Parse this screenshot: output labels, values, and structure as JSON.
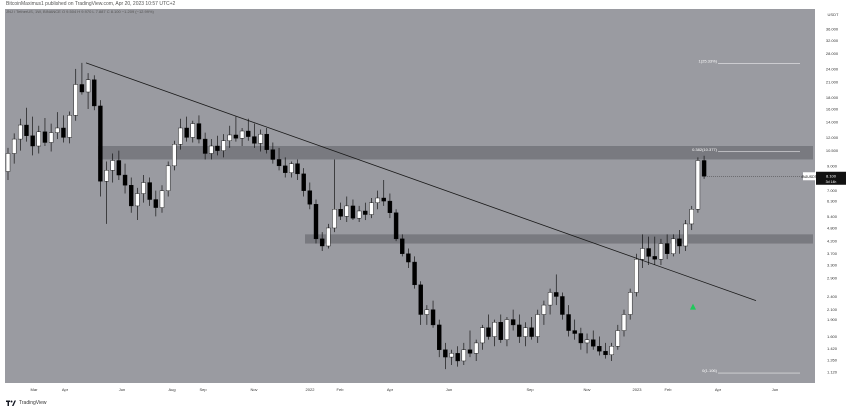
{
  "header": {
    "publish_line": "BitcoinMaximus1 published on TradingView.com, Apr 20, 2023 10:57 UTC+2",
    "symbol_line": "JNJ / TetherUS, 1W, BINANCE  O 9.504  H 9.970  L 7.887  C 8.100  −1.209 (−12.99%)"
  },
  "footer": {
    "brand": "TradingView"
  },
  "colors": {
    "plot_bg": "#9a9ba1",
    "up": "#ffffff",
    "down": "#000000",
    "zone": "#6e6f75",
    "arrow": "#1ec95a",
    "price_tag": "#111111"
  },
  "chart_data": {
    "type": "candlestick",
    "y_scale": "log",
    "ylim": [
      1.0,
      44.0
    ],
    "currency_label": "USDT",
    "y_ticks": [
      "36.000",
      "32.000",
      "28.000",
      "24.000",
      "21.000",
      "18.000",
      "16.000",
      "14.000",
      "12.000",
      "10.500",
      "9.000",
      "8.000",
      "7.000",
      "6.300",
      "5.400",
      "4.800",
      "4.200",
      "3.700",
      "3.300",
      "2.900",
      "2.400",
      "2.100",
      "1.900",
      "1.600",
      "1.420",
      "1.260",
      "1.120",
      "1.000"
    ],
    "x_ticks": [
      "Mar",
      "Apr",
      "Jun",
      "Aug",
      "Sep",
      "Nov",
      "2022",
      "Feb",
      "Apr",
      "Jun",
      "Sep",
      "Nov",
      "2023",
      "Feb",
      "Apr",
      "Jun"
    ],
    "price_tag": {
      "label": "JNJUSDT",
      "value": "8.100",
      "countdown": "3d 14h"
    },
    "annotations": [
      {
        "label": "1(25.33%)",
        "price": 25.33
      },
      {
        "label": "0.382(10.377)",
        "price": 10.377
      },
      {
        "label": "0(1.106)",
        "price": 1.106
      }
    ],
    "zones": [
      {
        "from": 9.6,
        "to": 11.0
      },
      {
        "from": 4.1,
        "to": 4.5
      }
    ],
    "trendline": {
      "from": 25.5,
      "to": 2.3
    },
    "arrow_price": 2.3,
    "candles": [
      {
        "o": 8.5,
        "h": 10.8,
        "l": 7.8,
        "c": 10.2
      },
      {
        "o": 10.2,
        "h": 12.5,
        "l": 9.2,
        "c": 11.8
      },
      {
        "o": 11.8,
        "h": 14.5,
        "l": 10.5,
        "c": 13.6
      },
      {
        "o": 13.6,
        "h": 16.2,
        "l": 11.5,
        "c": 12.2
      },
      {
        "o": 12.2,
        "h": 14.8,
        "l": 10.0,
        "c": 11.0
      },
      {
        "o": 11.0,
        "h": 13.5,
        "l": 10.2,
        "c": 12.7
      },
      {
        "o": 12.7,
        "h": 14.6,
        "l": 11.0,
        "c": 11.4
      },
      {
        "o": 11.4,
        "h": 13.8,
        "l": 10.4,
        "c": 12.6
      },
      {
        "o": 12.6,
        "h": 15.5,
        "l": 11.8,
        "c": 13.2
      },
      {
        "o": 13.2,
        "h": 15.0,
        "l": 11.4,
        "c": 12.0
      },
      {
        "o": 12.0,
        "h": 15.6,
        "l": 11.3,
        "c": 15.0
      },
      {
        "o": 15.0,
        "h": 24.0,
        "l": 14.2,
        "c": 20.5
      },
      {
        "o": 20.5,
        "h": 25.5,
        "l": 18.5,
        "c": 19.0
      },
      {
        "o": 19.0,
        "h": 23.0,
        "l": 16.0,
        "c": 21.5
      },
      {
        "o": 21.5,
        "h": 22.5,
        "l": 15.8,
        "c": 16.5
      },
      {
        "o": 16.5,
        "h": 17.5,
        "l": 6.6,
        "c": 7.7
      },
      {
        "o": 7.7,
        "h": 9.4,
        "l": 5.0,
        "c": 8.6
      },
      {
        "o": 8.6,
        "h": 10.2,
        "l": 7.6,
        "c": 9.5
      },
      {
        "o": 9.5,
        "h": 10.5,
        "l": 7.8,
        "c": 8.2
      },
      {
        "o": 8.2,
        "h": 9.2,
        "l": 6.8,
        "c": 7.4
      },
      {
        "o": 7.4,
        "h": 8.0,
        "l": 5.6,
        "c": 6.0
      },
      {
        "o": 6.0,
        "h": 7.2,
        "l": 5.2,
        "c": 6.8
      },
      {
        "o": 6.8,
        "h": 8.2,
        "l": 6.2,
        "c": 7.6
      },
      {
        "o": 7.6,
        "h": 8.0,
        "l": 6.0,
        "c": 6.4
      },
      {
        "o": 6.4,
        "h": 7.0,
        "l": 5.4,
        "c": 5.9
      },
      {
        "o": 5.9,
        "h": 7.4,
        "l": 5.6,
        "c": 7.0
      },
      {
        "o": 7.0,
        "h": 9.4,
        "l": 6.6,
        "c": 9.0
      },
      {
        "o": 9.0,
        "h": 11.6,
        "l": 8.6,
        "c": 11.2
      },
      {
        "o": 11.2,
        "h": 14.5,
        "l": 10.6,
        "c": 13.2
      },
      {
        "o": 13.2,
        "h": 14.8,
        "l": 11.5,
        "c": 12.0
      },
      {
        "o": 12.0,
        "h": 14.2,
        "l": 11.4,
        "c": 13.8
      },
      {
        "o": 13.8,
        "h": 15.0,
        "l": 11.3,
        "c": 11.8
      },
      {
        "o": 11.8,
        "h": 12.6,
        "l": 9.6,
        "c": 10.2
      },
      {
        "o": 10.2,
        "h": 11.8,
        "l": 9.6,
        "c": 11.0
      },
      {
        "o": 11.0,
        "h": 12.2,
        "l": 10.0,
        "c": 10.5
      },
      {
        "o": 10.5,
        "h": 12.4,
        "l": 9.8,
        "c": 11.6
      },
      {
        "o": 11.6,
        "h": 13.5,
        "l": 10.8,
        "c": 12.3
      },
      {
        "o": 12.3,
        "h": 14.8,
        "l": 11.5,
        "c": 11.9
      },
      {
        "o": 11.9,
        "h": 13.2,
        "l": 11.0,
        "c": 12.8
      },
      {
        "o": 12.8,
        "h": 14.5,
        "l": 11.6,
        "c": 12.1
      },
      {
        "o": 12.1,
        "h": 13.8,
        "l": 10.8,
        "c": 11.3
      },
      {
        "o": 11.3,
        "h": 13.0,
        "l": 10.4,
        "c": 12.4
      },
      {
        "o": 12.4,
        "h": 13.2,
        "l": 10.2,
        "c": 10.6
      },
      {
        "o": 10.6,
        "h": 11.4,
        "l": 9.2,
        "c": 9.6
      },
      {
        "o": 9.6,
        "h": 10.8,
        "l": 8.6,
        "c": 9.0
      },
      {
        "o": 9.0,
        "h": 9.8,
        "l": 8.0,
        "c": 8.4
      },
      {
        "o": 8.4,
        "h": 9.4,
        "l": 8.0,
        "c": 9.2
      },
      {
        "o": 9.2,
        "h": 9.6,
        "l": 7.8,
        "c": 8.3
      },
      {
        "o": 8.3,
        "h": 8.8,
        "l": 6.6,
        "c": 7.0
      },
      {
        "o": 7.0,
        "h": 7.6,
        "l": 5.8,
        "c": 6.1
      },
      {
        "o": 6.1,
        "h": 6.4,
        "l": 4.1,
        "c": 4.3
      },
      {
        "o": 4.3,
        "h": 4.6,
        "l": 3.8,
        "c": 4.0
      },
      {
        "o": 4.0,
        "h": 5.0,
        "l": 3.9,
        "c": 4.8
      },
      {
        "o": 4.8,
        "h": 9.6,
        "l": 4.6,
        "c": 5.8
      },
      {
        "o": 5.8,
        "h": 6.2,
        "l": 5.2,
        "c": 5.4
      },
      {
        "o": 5.4,
        "h": 6.6,
        "l": 5.1,
        "c": 6.0
      },
      {
        "o": 6.0,
        "h": 6.4,
        "l": 5.2,
        "c": 5.3
      },
      {
        "o": 5.3,
        "h": 6.0,
        "l": 5.1,
        "c": 5.7
      },
      {
        "o": 5.7,
        "h": 6.2,
        "l": 5.2,
        "c": 5.5
      },
      {
        "o": 5.5,
        "h": 6.5,
        "l": 5.3,
        "c": 6.2
      },
      {
        "o": 6.2,
        "h": 7.0,
        "l": 5.8,
        "c": 6.5
      },
      {
        "o": 6.5,
        "h": 7.8,
        "l": 6.0,
        "c": 6.3
      },
      {
        "o": 6.3,
        "h": 6.8,
        "l": 5.3,
        "c": 5.6
      },
      {
        "o": 5.6,
        "h": 5.8,
        "l": 4.2,
        "c": 4.3
      },
      {
        "o": 4.3,
        "h": 4.5,
        "l": 3.6,
        "c": 3.7
      },
      {
        "o": 3.7,
        "h": 3.9,
        "l": 3.2,
        "c": 3.4
      },
      {
        "o": 3.4,
        "h": 3.6,
        "l": 2.6,
        "c": 2.7
      },
      {
        "o": 2.7,
        "h": 2.8,
        "l": 1.8,
        "c": 2.0
      },
      {
        "o": 2.0,
        "h": 2.2,
        "l": 1.8,
        "c": 2.1
      },
      {
        "o": 2.1,
        "h": 2.3,
        "l": 1.75,
        "c": 1.8
      },
      {
        "o": 1.8,
        "h": 1.9,
        "l": 1.3,
        "c": 1.4
      },
      {
        "o": 1.4,
        "h": 1.5,
        "l": 1.15,
        "c": 1.3
      },
      {
        "o": 1.3,
        "h": 1.4,
        "l": 1.2,
        "c": 1.35
      },
      {
        "o": 1.35,
        "h": 1.45,
        "l": 1.18,
        "c": 1.25
      },
      {
        "o": 1.25,
        "h": 1.5,
        "l": 1.2,
        "c": 1.4
      },
      {
        "o": 1.4,
        "h": 1.7,
        "l": 1.3,
        "c": 1.35
      },
      {
        "o": 1.35,
        "h": 1.55,
        "l": 1.25,
        "c": 1.5
      },
      {
        "o": 1.5,
        "h": 1.8,
        "l": 1.4,
        "c": 1.75
      },
      {
        "o": 1.75,
        "h": 2.0,
        "l": 1.55,
        "c": 1.6
      },
      {
        "o": 1.6,
        "h": 1.9,
        "l": 1.45,
        "c": 1.85
      },
      {
        "o": 1.85,
        "h": 2.0,
        "l": 1.5,
        "c": 1.55
      },
      {
        "o": 1.55,
        "h": 1.95,
        "l": 1.45,
        "c": 1.9
      },
      {
        "o": 1.9,
        "h": 2.1,
        "l": 1.7,
        "c": 1.8
      },
      {
        "o": 1.8,
        "h": 2.0,
        "l": 1.5,
        "c": 1.6
      },
      {
        "o": 1.6,
        "h": 1.85,
        "l": 1.45,
        "c": 1.75
      },
      {
        "o": 1.75,
        "h": 1.95,
        "l": 1.55,
        "c": 1.6
      },
      {
        "o": 1.6,
        "h": 2.1,
        "l": 1.5,
        "c": 2.0
      },
      {
        "o": 2.0,
        "h": 2.3,
        "l": 1.8,
        "c": 2.2
      },
      {
        "o": 2.2,
        "h": 2.6,
        "l": 2.0,
        "c": 2.5
      },
      {
        "o": 2.5,
        "h": 3.0,
        "l": 2.2,
        "c": 2.4
      },
      {
        "o": 2.4,
        "h": 2.5,
        "l": 1.9,
        "c": 2.0
      },
      {
        "o": 2.0,
        "h": 2.2,
        "l": 1.6,
        "c": 1.7
      },
      {
        "o": 1.7,
        "h": 1.9,
        "l": 1.55,
        "c": 1.65
      },
      {
        "o": 1.65,
        "h": 1.75,
        "l": 1.4,
        "c": 1.5
      },
      {
        "o": 1.5,
        "h": 1.65,
        "l": 1.35,
        "c": 1.55
      },
      {
        "o": 1.55,
        "h": 1.7,
        "l": 1.4,
        "c": 1.45
      },
      {
        "o": 1.45,
        "h": 1.6,
        "l": 1.32,
        "c": 1.38
      },
      {
        "o": 1.38,
        "h": 1.5,
        "l": 1.28,
        "c": 1.33
      },
      {
        "o": 1.33,
        "h": 1.5,
        "l": 1.25,
        "c": 1.45
      },
      {
        "o": 1.45,
        "h": 1.8,
        "l": 1.4,
        "c": 1.7
      },
      {
        "o": 1.7,
        "h": 2.1,
        "l": 1.6,
        "c": 2.0
      },
      {
        "o": 2.0,
        "h": 2.6,
        "l": 1.9,
        "c": 2.5
      },
      {
        "o": 2.5,
        "h": 3.7,
        "l": 2.4,
        "c": 3.5
      },
      {
        "o": 3.5,
        "h": 4.5,
        "l": 3.2,
        "c": 3.9
      },
      {
        "o": 3.9,
        "h": 4.4,
        "l": 3.3,
        "c": 3.6
      },
      {
        "o": 3.6,
        "h": 4.4,
        "l": 3.3,
        "c": 3.5
      },
      {
        "o": 3.5,
        "h": 4.3,
        "l": 3.3,
        "c": 4.1
      },
      {
        "o": 4.1,
        "h": 4.5,
        "l": 3.5,
        "c": 3.7
      },
      {
        "o": 3.7,
        "h": 4.5,
        "l": 3.6,
        "c": 4.3
      },
      {
        "o": 4.3,
        "h": 4.7,
        "l": 3.7,
        "c": 4.0
      },
      {
        "o": 4.0,
        "h": 5.2,
        "l": 3.8,
        "c": 5.0
      },
      {
        "o": 5.0,
        "h": 6.0,
        "l": 4.7,
        "c": 5.8
      },
      {
        "o": 5.8,
        "h": 9.8,
        "l": 5.6,
        "c": 9.5
      },
      {
        "o": 9.5,
        "h": 9.97,
        "l": 7.887,
        "c": 8.1
      }
    ]
  }
}
